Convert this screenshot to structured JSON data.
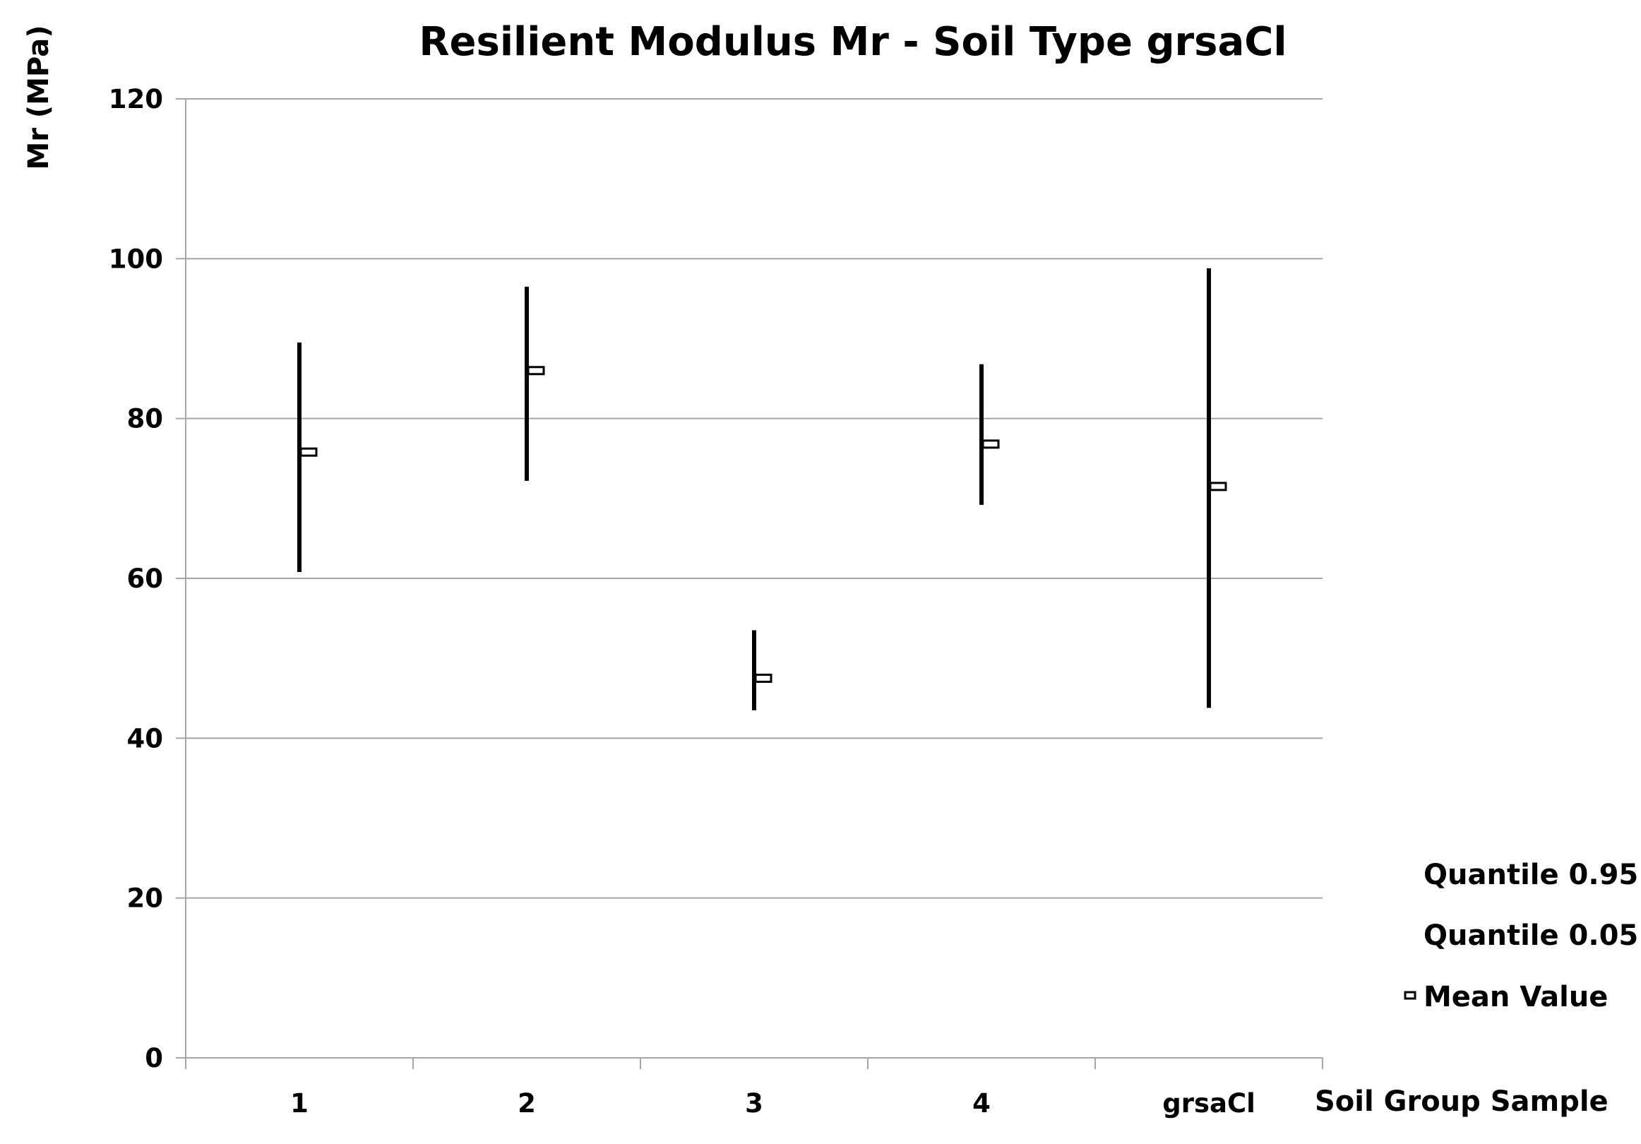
{
  "chart_data": {
    "type": "stock-high-low",
    "title": "Resilient Modulus Mr - Soil Type grsaCl",
    "ylabel": "Mr (MPa)",
    "xlabel": "Soil  Group Sample",
    "ylim": [
      0,
      120
    ],
    "yticks": [
      "0",
      "20",
      "40",
      "60",
      "80",
      "100",
      "120"
    ],
    "grid": true,
    "legend_position": "bottom-right",
    "categories": [
      "1",
      "2",
      "3",
      "4",
      "grsaCl"
    ],
    "series": [
      {
        "name": "Quantile 0.95",
        "values": [
          89.5,
          96.5,
          53.5,
          86.8,
          98.8
        ]
      },
      {
        "name": "Quantile 0.05",
        "values": [
          60.8,
          72.2,
          43.5,
          69.2,
          43.8
        ]
      },
      {
        "name": "Mean Value",
        "values": [
          75.8,
          86.0,
          47.5,
          76.8,
          71.5
        ]
      }
    ],
    "colors": {
      "line": "#000000",
      "grid": "#a6a6a6",
      "marker_fill": "#ffffff"
    }
  }
}
